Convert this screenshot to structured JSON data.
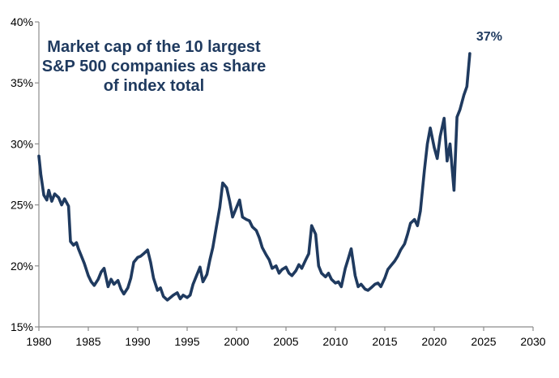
{
  "chart_data": {
    "type": "line",
    "title_lines": [
      "Market cap of the 10 largest",
      "S&P 500 companies as share",
      "of index total"
    ],
    "xlabel": "",
    "ylabel": "",
    "xlim": [
      1980,
      2030
    ],
    "ylim": [
      15,
      40
    ],
    "x_ticks": [
      1980,
      1985,
      1990,
      1995,
      2000,
      2005,
      2010,
      2015,
      2020,
      2025,
      2030
    ],
    "x_tick_labels": [
      "1980",
      "1985",
      "1990",
      "1995",
      "2000",
      "2005",
      "2010",
      "2015",
      "2020",
      "2025",
      "2030"
    ],
    "y_ticks": [
      15,
      20,
      25,
      30,
      35,
      40
    ],
    "y_tick_labels": [
      "15%",
      "20%",
      "25%",
      "30%",
      "35%",
      "40%"
    ],
    "grid": false,
    "line_color": "#1f3a5f",
    "annotation": {
      "text": "37%",
      "x": 2023.6,
      "y": 37.4
    },
    "series": [
      {
        "x": [
          1980.0,
          1980.2,
          1980.5,
          1980.8,
          1981.0,
          1981.3,
          1981.6,
          1982.0,
          1982.3,
          1982.6,
          1983.0,
          1983.2,
          1983.5,
          1983.8,
          1984.0,
          1984.3,
          1984.6,
          1985.0,
          1985.3,
          1985.6,
          1986.0,
          1986.3,
          1986.6,
          1987.0,
          1987.3,
          1987.6,
          1988.0,
          1988.3,
          1988.6,
          1989.0,
          1989.3,
          1989.6,
          1990.0,
          1990.3,
          1990.6,
          1991.0,
          1991.3,
          1991.6,
          1992.0,
          1992.3,
          1992.6,
          1993.0,
          1993.3,
          1993.6,
          1994.0,
          1994.3,
          1994.6,
          1995.0,
          1995.3,
          1995.6,
          1996.0,
          1996.3,
          1996.6,
          1997.0,
          1997.3,
          1997.6,
          1998.0,
          1998.3,
          1998.6,
          1999.0,
          1999.3,
          1999.6,
          2000.0,
          2000.3,
          2000.6,
          2001.0,
          2001.3,
          2001.6,
          2002.0,
          2002.3,
          2002.6,
          2003.0,
          2003.3,
          2003.6,
          2004.0,
          2004.3,
          2004.6,
          2005.0,
          2005.3,
          2005.6,
          2006.0,
          2006.3,
          2006.6,
          2007.0,
          2007.3,
          2007.6,
          2008.0,
          2008.3,
          2008.6,
          2009.0,
          2009.3,
          2009.6,
          2010.0,
          2010.3,
          2010.6,
          2011.0,
          2011.3,
          2011.6,
          2012.0,
          2012.3,
          2012.6,
          2013.0,
          2013.3,
          2013.6,
          2014.0,
          2014.3,
          2014.6,
          2015.0,
          2015.3,
          2015.6,
          2016.0,
          2016.3,
          2016.6,
          2017.0,
          2017.3,
          2017.6,
          2018.0,
          2018.3,
          2018.6,
          2019.0,
          2019.3,
          2019.6,
          2020.0,
          2020.3,
          2020.6,
          2021.0,
          2021.3,
          2021.6,
          2022.0,
          2022.3,
          2022.6,
          2023.0,
          2023.3,
          2023.6
        ],
        "y": [
          29.0,
          27.5,
          25.8,
          25.4,
          26.2,
          25.3,
          25.9,
          25.6,
          25.0,
          25.5,
          24.9,
          22.0,
          21.7,
          21.9,
          21.4,
          20.8,
          20.2,
          19.2,
          18.7,
          18.4,
          18.9,
          19.5,
          19.8,
          18.3,
          18.9,
          18.5,
          18.8,
          18.1,
          17.7,
          18.2,
          19.0,
          20.3,
          20.7,
          20.8,
          21.0,
          21.3,
          20.3,
          19.0,
          18.0,
          18.2,
          17.5,
          17.2,
          17.4,
          17.6,
          17.8,
          17.3,
          17.6,
          17.4,
          17.6,
          18.5,
          19.3,
          19.9,
          18.7,
          19.3,
          20.5,
          21.5,
          23.4,
          24.8,
          26.8,
          26.4,
          25.3,
          24.0,
          24.8,
          25.4,
          24.0,
          23.8,
          23.7,
          23.2,
          22.9,
          22.3,
          21.5,
          20.9,
          20.5,
          19.8,
          20.0,
          19.4,
          19.7,
          19.9,
          19.4,
          19.2,
          19.6,
          20.1,
          19.8,
          20.5,
          21.0,
          23.3,
          22.6,
          20.0,
          19.4,
          19.1,
          19.4,
          18.9,
          18.6,
          18.7,
          18.3,
          19.8,
          20.6,
          21.4,
          19.2,
          18.3,
          18.5,
          18.1,
          18.0,
          18.2,
          18.5,
          18.6,
          18.3,
          19.0,
          19.7,
          20.0,
          20.4,
          20.8,
          21.3,
          21.8,
          22.6,
          23.5,
          23.8,
          23.3,
          24.5,
          27.8,
          30.0,
          31.3,
          29.7,
          28.8,
          30.6,
          32.1,
          28.6,
          30.0,
          26.2,
          32.2,
          32.8,
          34.0,
          34.7,
          37.4
        ]
      }
    ]
  }
}
